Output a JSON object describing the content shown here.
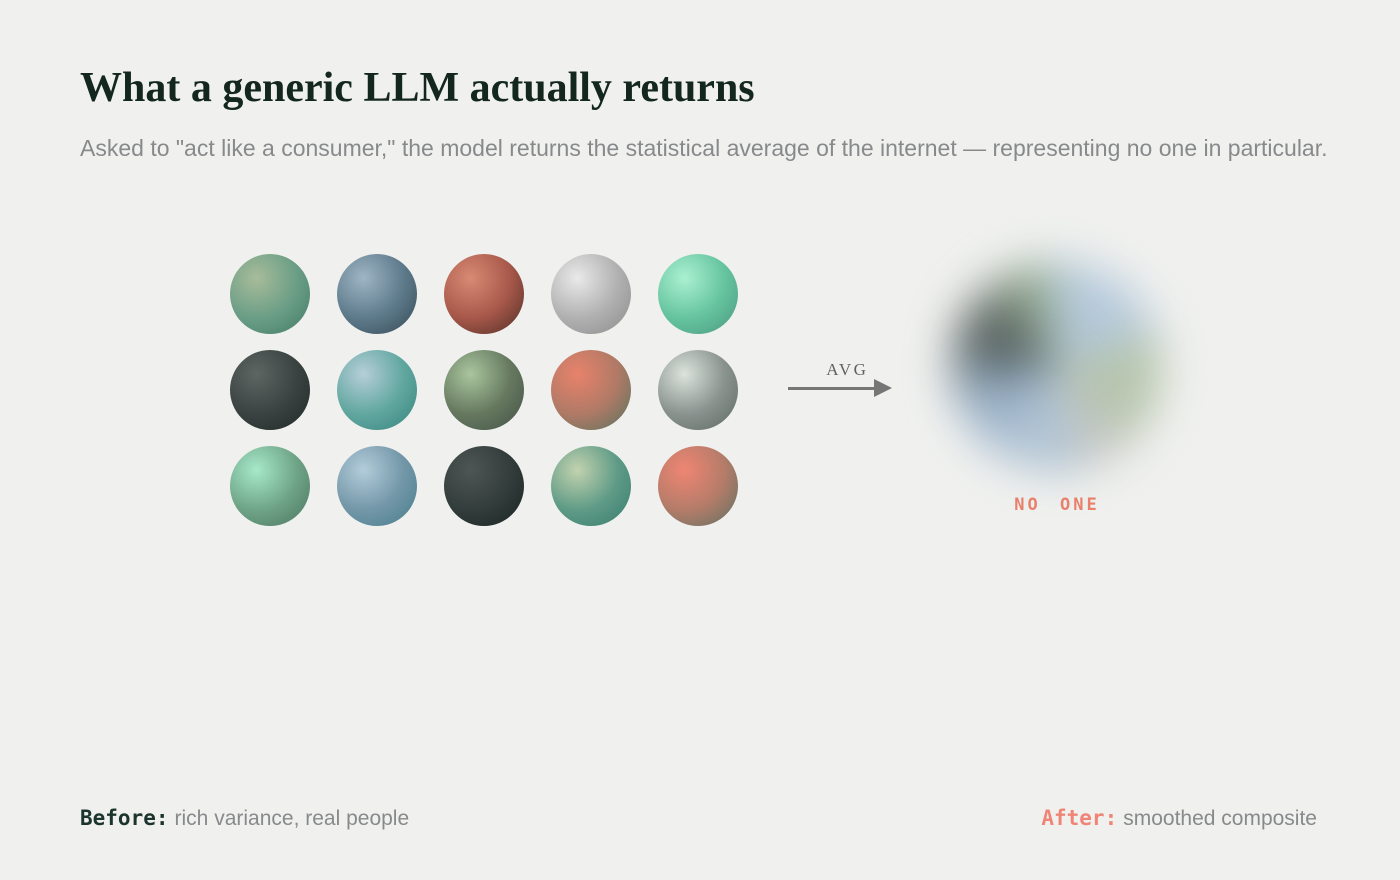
{
  "header": {
    "title": "What a generic LLM actually returns",
    "subtitle": "Asked to \"act like a consumer,\" the model returns the statistical average of the internet — representing no one in particular."
  },
  "before": {
    "spheres": [
      {
        "name": "sage-green",
        "highlight": "#a8bc9a",
        "mid": "#6b9e86",
        "edge": "#47806b"
      },
      {
        "name": "slate-blue",
        "highlight": "#9eb5c5",
        "mid": "#5e7b8b",
        "edge": "#3c505d"
      },
      {
        "name": "terracotta",
        "highlight": "#d98a74",
        "mid": "#a7584a",
        "edge": "#5c332b"
      },
      {
        "name": "silver",
        "highlight": "#e9e9e9",
        "mid": "#b1b1b1",
        "edge": "#919191"
      },
      {
        "name": "mint",
        "highlight": "#aaf0d1",
        "mid": "#66c49f",
        "edge": "#4d9f84"
      },
      {
        "name": "charcoal",
        "highlight": "#5d6663",
        "mid": "#3a4341",
        "edge": "#232d2b"
      },
      {
        "name": "teal",
        "highlight": "#b6ced9",
        "mid": "#61a7a0",
        "edge": "#3d8a83"
      },
      {
        "name": "olive-sage",
        "highlight": "#a9c59e",
        "mid": "#66795f",
        "edge": "#47574a"
      },
      {
        "name": "coral-teal",
        "highlight": "#e8826b",
        "mid": "#b07a66",
        "edge": "#64745f"
      },
      {
        "name": "silver-green",
        "highlight": "#dce3dc",
        "mid": "#8a938f",
        "edge": "#657068"
      },
      {
        "name": "mint-2",
        "highlight": "#a6e9c9",
        "mid": "#6fa487",
        "edge": "#507c66"
      },
      {
        "name": "steel-blue",
        "highlight": "#b3ccda",
        "mid": "#7397a8",
        "edge": "#4c8190"
      },
      {
        "name": "charcoal-2",
        "highlight": "#4d5654",
        "mid": "#333d3b",
        "edge": "#1d2726"
      },
      {
        "name": "sage-green-2",
        "highlight": "#c2d2ae",
        "mid": "#5f9b87",
        "edge": "#3d8170"
      },
      {
        "name": "coral-gray",
        "highlight": "#ef8573",
        "mid": "#b47c69",
        "edge": "#6b7263"
      }
    ]
  },
  "transform": {
    "arrow_label": "AVG"
  },
  "after": {
    "result_label": "NO ONE",
    "blob_segments": [
      {
        "color": "#b4c8da",
        "to": 70
      },
      {
        "color": "#b5c4ab",
        "to": 135
      },
      {
        "color": "#c3c5c1",
        "to": 165
      },
      {
        "color": "#b0c3d3",
        "to": 215
      },
      {
        "color": "#9db4cb",
        "to": 250
      },
      {
        "color": "#7f93a3",
        "to": 275
      },
      {
        "color": "#535d5b",
        "to": 305
      },
      {
        "color": "#68746f",
        "to": 325
      },
      {
        "color": "#8da287",
        "to": 350
      },
      {
        "color": "#a4bdb3",
        "to": 360
      }
    ]
  },
  "footer": {
    "before_label": "Before:",
    "before_text": "rich variance, real people",
    "after_label": "After:",
    "after_text": "smoothed composite"
  },
  "colors": {
    "background": "#f0f1ef",
    "title_text": "#13271f",
    "muted_text": "#87898b",
    "accent_coral": "#e8806b",
    "accent_coral_light": "#f08577",
    "dark_label": "#1d332d",
    "arrow_gray": "#767676"
  }
}
